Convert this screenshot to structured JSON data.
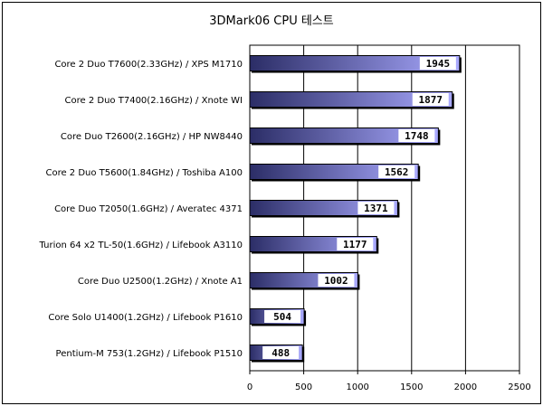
{
  "chart_data": {
    "type": "bar",
    "orientation": "horizontal",
    "title": "3DMark06 CPU 테스트",
    "categories": [
      "Core 2 Duo T7600(2.33GHz) / XPS M1710",
      "Core 2 Duo T7400(2.16GHz) / Xnote WI",
      "Core Duo T2600(2.16GHz) / HP NW8440",
      "Core 2 Duo T5600(1.84GHz) / Toshiba A100",
      "Core Duo T2050(1.6GHz) / Averatec 4371",
      "Turion 64 x2 TL-50(1.6GHz) / Lifebook A3110",
      "Core Duo U2500(1.2GHz) / Xnote A1",
      "Core Solo U1400(1.2GHz) / Lifebook P1610",
      "Pentium-M 753(1.2GHz) / Lifebook P1510"
    ],
    "values": [
      1945,
      1877,
      1748,
      1562,
      1371,
      1177,
      1002,
      504,
      488
    ],
    "xlim": [
      0,
      2500
    ],
    "xticks": [
      0,
      500,
      1000,
      1500,
      2000,
      2500
    ],
    "grid": "vertical",
    "legend": "none",
    "colors": {
      "bar_dark": "#2b2d66",
      "bar_light": "#aaaaff",
      "grid": "#000000"
    }
  }
}
